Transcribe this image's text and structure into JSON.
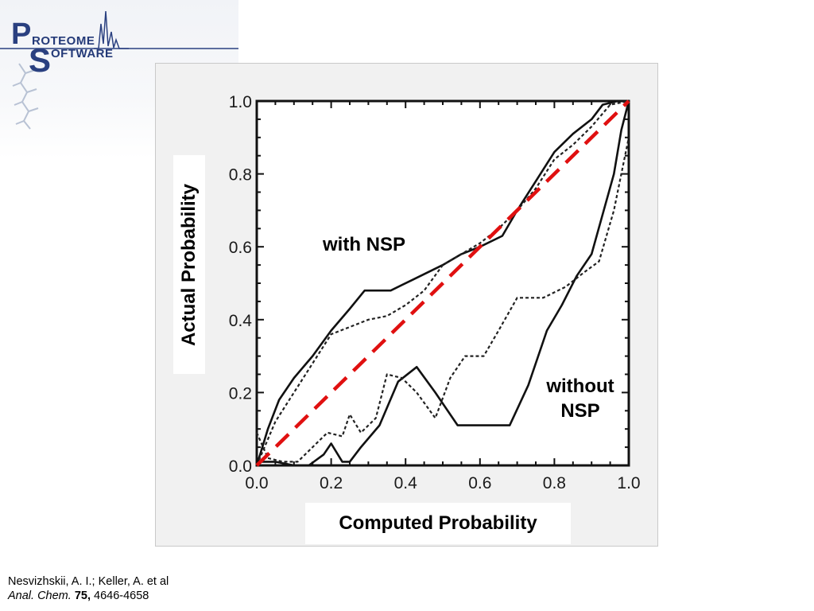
{
  "logo": {
    "letter_p": "P",
    "word_roteome": "ROTEOME",
    "letter_s": "S",
    "word_oftware": "OFTWARE"
  },
  "chart_data": {
    "type": "line",
    "xlabel": "Computed Probability",
    "ylabel": "Actual Probability",
    "xlim": [
      0,
      1
    ],
    "ylim": [
      0,
      1
    ],
    "xticks": [
      "0.0",
      "0.2",
      "0.4",
      "0.6",
      "0.8",
      "1.0"
    ],
    "yticks": [
      "0.0",
      "0.2",
      "0.4",
      "0.6",
      "0.8",
      "1.0"
    ],
    "grid": false,
    "annotations": [
      {
        "text": "with NSP"
      },
      {
        "text_lines": [
          "without",
          "NSP"
        ]
      }
    ],
    "series": [
      {
        "style": "solid",
        "x": [
          0.0,
          0.03,
          0.06,
          0.1,
          0.15,
          0.2,
          0.25,
          0.29,
          0.36,
          0.42,
          0.5,
          0.55,
          0.6,
          0.66,
          0.7,
          0.75,
          0.8,
          0.85,
          0.9,
          0.93,
          0.97,
          1.0
        ],
        "y": [
          0.0,
          0.1,
          0.18,
          0.24,
          0.3,
          0.37,
          0.43,
          0.48,
          0.48,
          0.51,
          0.55,
          0.58,
          0.6,
          0.63,
          0.7,
          0.78,
          0.86,
          0.91,
          0.95,
          0.99,
          1.0,
          1.0
        ]
      },
      {
        "style": "dotted",
        "x": [
          0.0,
          0.05,
          0.1,
          0.15,
          0.2,
          0.25,
          0.3,
          0.35,
          0.4,
          0.45,
          0.5,
          0.55,
          0.6,
          0.65,
          0.7,
          0.75,
          0.8,
          0.85,
          0.9,
          0.95,
          1.0
        ],
        "y": [
          0.0,
          0.12,
          0.2,
          0.28,
          0.36,
          0.38,
          0.4,
          0.41,
          0.44,
          0.48,
          0.55,
          0.58,
          0.61,
          0.65,
          0.7,
          0.76,
          0.84,
          0.88,
          0.93,
          0.99,
          1.0
        ]
      },
      {
        "style": "solid",
        "x": [
          0.0,
          0.05,
          0.1,
          0.14,
          0.18,
          0.2,
          0.23,
          0.25,
          0.28,
          0.33,
          0.38,
          0.43,
          0.48,
          0.54,
          0.6,
          0.68,
          0.73,
          0.78,
          0.82,
          0.86,
          0.9,
          0.96,
          0.98,
          1.0
        ],
        "y": [
          0.01,
          0.01,
          0.0,
          0.0,
          0.03,
          0.06,
          0.01,
          0.01,
          0.05,
          0.11,
          0.23,
          0.27,
          0.2,
          0.11,
          0.11,
          0.11,
          0.22,
          0.37,
          0.44,
          0.52,
          0.58,
          0.8,
          0.92,
          1.0
        ]
      },
      {
        "style": "dotted",
        "x": [
          0.0,
          0.03,
          0.07,
          0.11,
          0.15,
          0.19,
          0.23,
          0.25,
          0.28,
          0.32,
          0.35,
          0.39,
          0.43,
          0.48,
          0.52,
          0.56,
          0.61,
          0.65,
          0.7,
          0.77,
          0.83,
          0.88,
          0.92,
          0.96,
          0.98,
          1.0
        ],
        "y": [
          0.09,
          0.02,
          0.01,
          0.01,
          0.05,
          0.09,
          0.08,
          0.14,
          0.09,
          0.13,
          0.25,
          0.24,
          0.2,
          0.13,
          0.24,
          0.3,
          0.3,
          0.37,
          0.46,
          0.46,
          0.49,
          0.53,
          0.56,
          0.7,
          0.8,
          0.9
        ]
      },
      {
        "style": "dashed-red",
        "x": [
          0.0,
          1.0
        ],
        "y": [
          0.0,
          1.0
        ]
      }
    ]
  },
  "citation": {
    "authors": "Nesvizhskii, A. I.; Keller, A. et al",
    "journal": "Anal. Chem.",
    "volume": "75,",
    "pages": "4646-4658"
  }
}
